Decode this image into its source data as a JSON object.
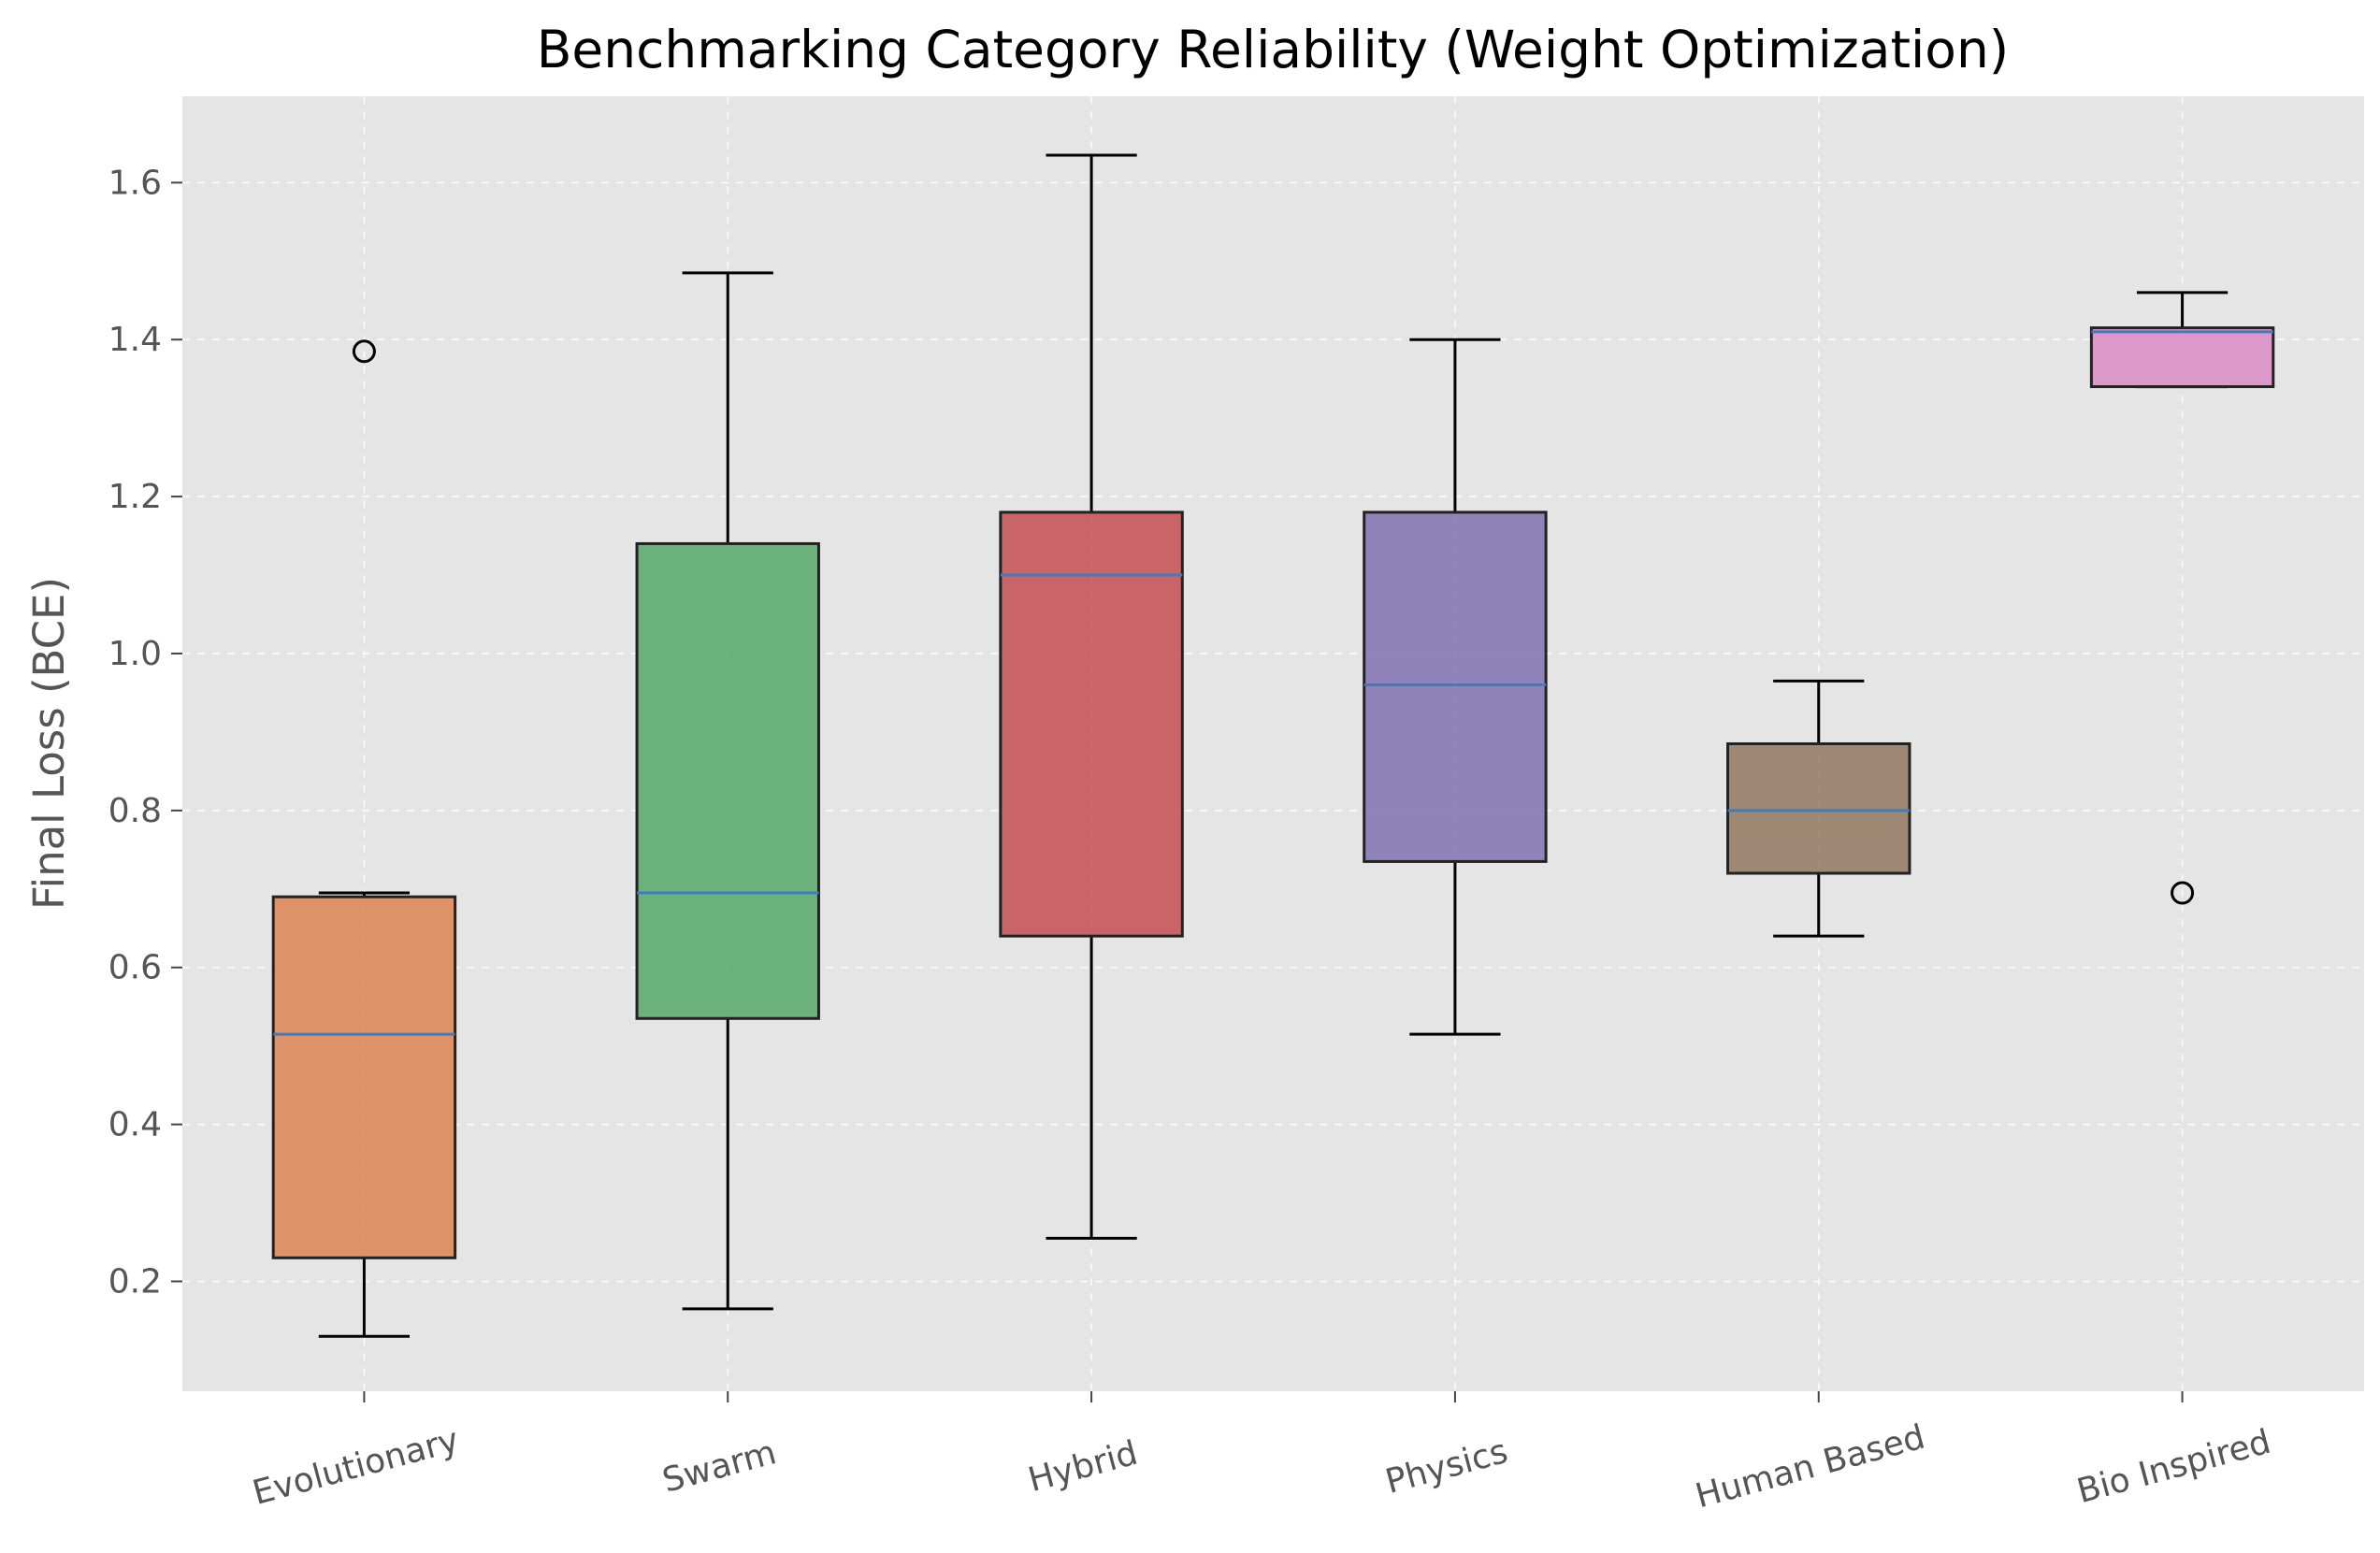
{
  "chart_data": {
    "type": "box",
    "title": "Benchmarking Category Reliability (Weight Optimization)",
    "xlabel": "",
    "ylabel": "Final Loss (BCE)",
    "ylim": [
      0.06,
      1.71
    ],
    "yticks": [
      0.2,
      0.4,
      0.6,
      0.8,
      1.0,
      1.2,
      1.4,
      1.6
    ],
    "ytick_labels": [
      "0.2",
      "0.4",
      "0.6",
      "0.8",
      "1.0",
      "1.2",
      "1.4",
      "1.6"
    ],
    "grid": true,
    "categories": [
      "Evolutionary",
      "Swarm",
      "Hybrid",
      "Physics",
      "Human Based",
      "Bio Inspired"
    ],
    "boxes": [
      {
        "category": "Evolutionary",
        "whisker_low": 0.13,
        "q1": 0.23,
        "median": 0.515,
        "q3": 0.69,
        "whisker_high": 0.695,
        "outliers": [
          1.385
        ],
        "color": "#dd8452"
      },
      {
        "category": "Swarm",
        "whisker_low": 0.165,
        "q1": 0.535,
        "median": 0.695,
        "q3": 1.14,
        "whisker_high": 1.485,
        "outliers": [],
        "color": "#55a868"
      },
      {
        "category": "Hybrid",
        "whisker_low": 0.255,
        "q1": 0.64,
        "median": 1.1,
        "q3": 1.18,
        "whisker_high": 1.635,
        "outliers": [],
        "color": "#c44e52"
      },
      {
        "category": "Physics",
        "whisker_low": 0.515,
        "q1": 0.735,
        "median": 0.96,
        "q3": 1.18,
        "whisker_high": 1.4,
        "outliers": [],
        "color": "#8172b3"
      },
      {
        "category": "Human Based",
        "whisker_low": 0.64,
        "q1": 0.72,
        "median": 0.8,
        "q3": 0.885,
        "whisker_high": 0.965,
        "outliers": [],
        "color": "#937860"
      },
      {
        "category": "Bio Inspired",
        "whisker_low": 1.34,
        "q1": 1.34,
        "median": 1.41,
        "q3": 1.415,
        "whisker_high": 1.46,
        "outliers": [
          0.695
        ],
        "color": "#da8bc3"
      }
    ],
    "colors": {
      "plot_background": "#e5e5e5",
      "grid": "#ffffff",
      "median": "#3b7dc0",
      "box_edge": "#222222",
      "whisker": "#000000",
      "tick_text": "#555555"
    }
  }
}
